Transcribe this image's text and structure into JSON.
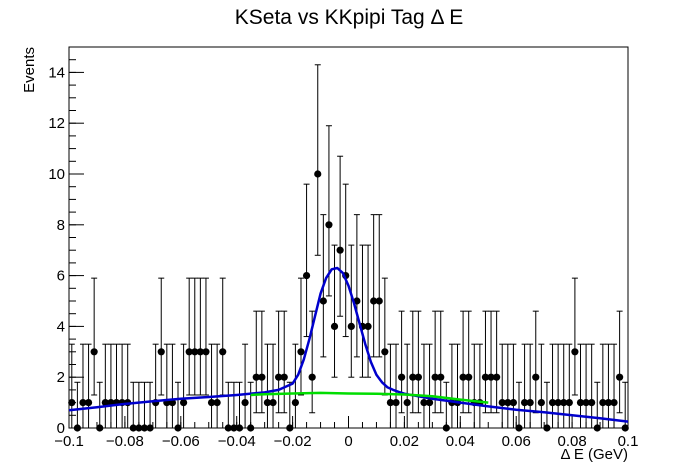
{
  "chart_data": {
    "type": "scatter",
    "title": "KSeta vs KKpipi Tag Δ E",
    "xlabel": "Δ E (GeV)",
    "ylabel": "Events",
    "xlim": [
      -0.1,
      0.1
    ],
    "ylim": [
      0,
      15
    ],
    "x_ticks": [
      -0.1,
      -0.08,
      -0.06,
      -0.04,
      -0.02,
      0,
      0.02,
      0.04,
      0.06,
      0.08,
      0.1
    ],
    "x_tick_labels": [
      "−0.1",
      "−0.08",
      "−0.06",
      "−0.04",
      "−0.02",
      "0",
      "0.02",
      "0.04",
      "0.06",
      "0.08",
      "0.1"
    ],
    "y_ticks": [
      0,
      2,
      4,
      6,
      8,
      10,
      12,
      14
    ],
    "y_tick_labels": [
      "0",
      "2",
      "4",
      "6",
      "8",
      "10",
      "12",
      "14"
    ],
    "grid": false,
    "legend": "none",
    "colors": {
      "data": "#000000",
      "total_fit": "#0000cc",
      "background_fit": "#00dd00"
    },
    "series": [
      {
        "kind": "points_with_errors",
        "x": [
          -0.099,
          -0.097,
          -0.095,
          -0.093,
          -0.091,
          -0.089,
          -0.087,
          -0.085,
          -0.083,
          -0.081,
          -0.079,
          -0.077,
          -0.075,
          -0.073,
          -0.071,
          -0.069,
          -0.067,
          -0.065,
          -0.063,
          -0.061,
          -0.059,
          -0.057,
          -0.055,
          -0.053,
          -0.051,
          -0.049,
          -0.047,
          -0.045,
          -0.043,
          -0.041,
          -0.039,
          -0.037,
          -0.035,
          -0.033,
          -0.031,
          -0.029,
          -0.027,
          -0.025,
          -0.023,
          -0.021,
          -0.019,
          -0.017,
          -0.015,
          -0.013,
          -0.011,
          -0.009,
          -0.007,
          -0.005,
          -0.003,
          -0.001,
          0.001,
          0.003,
          0.005,
          0.007,
          0.009,
          0.011,
          0.013,
          0.015,
          0.017,
          0.019,
          0.021,
          0.023,
          0.025,
          0.027,
          0.029,
          0.031,
          0.033,
          0.035,
          0.037,
          0.039,
          0.041,
          0.043,
          0.045,
          0.047,
          0.049,
          0.051,
          0.053,
          0.055,
          0.057,
          0.059,
          0.061,
          0.063,
          0.065,
          0.067,
          0.069,
          0.071,
          0.073,
          0.075,
          0.077,
          0.079,
          0.081,
          0.083,
          0.085,
          0.087,
          0.089,
          0.091,
          0.093,
          0.095,
          0.097,
          0.099
        ],
        "y": [
          1,
          0,
          1,
          1,
          3,
          0,
          1,
          1,
          1,
          1,
          1,
          0,
          0,
          0,
          0,
          1,
          3,
          1,
          1,
          0,
          1,
          3,
          3,
          3,
          3,
          1,
          1,
          3,
          0,
          0,
          0,
          1,
          0,
          2,
          2,
          1,
          1,
          2,
          2,
          0,
          1,
          3,
          6,
          2,
          10,
          5,
          8,
          4,
          7,
          6,
          4,
          5,
          4,
          4,
          5,
          5,
          3,
          1,
          1,
          2,
          1,
          2,
          2,
          1,
          1,
          2,
          2,
          0,
          1,
          1,
          2,
          2,
          1,
          1,
          2,
          2,
          2,
          1,
          1,
          1,
          0,
          1,
          1,
          2,
          1,
          0,
          1,
          1,
          1,
          1,
          3,
          1,
          1,
          1,
          0,
          1,
          1,
          1,
          2,
          0
        ],
        "err_low": [
          1,
          0,
          1,
          1,
          1.7,
          0,
          1,
          1,
          1,
          1,
          1,
          0,
          0,
          0,
          0,
          1,
          1.7,
          1,
          1,
          0,
          1,
          1.7,
          1.7,
          1.7,
          1.7,
          1,
          1,
          1.7,
          0,
          0,
          0,
          1,
          0,
          1.4,
          1.4,
          1,
          1,
          1.4,
          1.4,
          0,
          1,
          1.7,
          2.4,
          1.4,
          3.2,
          2.2,
          2.8,
          2,
          2.6,
          2.4,
          2,
          2.2,
          2,
          2,
          2.2,
          2.2,
          1.7,
          1,
          1,
          1.4,
          1,
          1.4,
          1.4,
          1,
          1,
          1.4,
          1.4,
          0,
          1,
          1,
          1.4,
          1.4,
          1,
          1,
          1.4,
          1.4,
          1.4,
          1,
          1,
          1,
          0,
          1,
          1,
          1.4,
          1,
          0,
          1,
          1,
          1,
          1,
          1.7,
          1,
          1,
          1,
          0,
          1,
          1,
          1,
          1.4,
          0
        ],
        "err_high": [
          2.3,
          1.8,
          2.3,
          2.3,
          2.9,
          1.8,
          2.3,
          2.3,
          2.3,
          2.3,
          2.3,
          1.8,
          1.8,
          1.8,
          1.8,
          2.3,
          2.9,
          2.3,
          2.3,
          1.8,
          2.3,
          2.9,
          2.9,
          2.9,
          2.9,
          2.3,
          2.3,
          2.9,
          1.8,
          1.8,
          1.8,
          2.3,
          1.8,
          2.6,
          2.6,
          2.3,
          2.3,
          2.6,
          2.6,
          1.8,
          2.3,
          2.9,
          3.6,
          2.6,
          4.3,
          3.4,
          3.9,
          3.2,
          3.7,
          3.6,
          3.2,
          3.4,
          3.2,
          3.2,
          3.4,
          3.4,
          2.9,
          2.3,
          2.3,
          2.6,
          2.3,
          2.6,
          2.6,
          2.3,
          2.3,
          2.6,
          2.6,
          1.8,
          2.3,
          2.3,
          2.6,
          2.6,
          2.3,
          2.3,
          2.6,
          2.6,
          2.6,
          2.3,
          2.3,
          2.3,
          1.8,
          2.3,
          2.3,
          2.6,
          2.3,
          1.8,
          2.3,
          2.3,
          2.3,
          2.3,
          2.9,
          2.3,
          2.3,
          2.3,
          1.8,
          2.3,
          2.3,
          2.3,
          2.6,
          1.8
        ]
      },
      {
        "kind": "line",
        "color_key": "total_fit",
        "x": [
          -0.1,
          -0.09,
          -0.08,
          -0.07,
          -0.06,
          -0.05,
          -0.04,
          -0.03,
          -0.025,
          -0.02,
          -0.018,
          -0.016,
          -0.014,
          -0.012,
          -0.01,
          -0.008,
          -0.006,
          -0.004,
          -0.002,
          0,
          0.002,
          0.004,
          0.006,
          0.008,
          0.01,
          0.012,
          0.014,
          0.016,
          0.018,
          0.02,
          0.025,
          0.03,
          0.04,
          0.05,
          0.06,
          0.07,
          0.08,
          0.09,
          0.1
        ],
        "y": [
          0.7,
          0.82,
          0.95,
          1.05,
          1.15,
          1.22,
          1.3,
          1.4,
          1.5,
          1.75,
          2.1,
          2.7,
          3.5,
          4.4,
          5.3,
          5.9,
          6.25,
          6.3,
          6.1,
          5.6,
          4.9,
          4.1,
          3.3,
          2.6,
          2.1,
          1.8,
          1.6,
          1.5,
          1.42,
          1.35,
          1.25,
          1.15,
          1.0,
          0.85,
          0.72,
          0.62,
          0.5,
          0.38,
          0.25
        ]
      },
      {
        "kind": "line",
        "color_key": "background_fit",
        "x": [
          -0.035,
          -0.03,
          -0.02,
          -0.01,
          0,
          0.01,
          0.02,
          0.03,
          0.04,
          0.05
        ],
        "y": [
          1.3,
          1.33,
          1.36,
          1.38,
          1.36,
          1.35,
          1.32,
          1.25,
          1.12,
          1.0
        ]
      }
    ]
  }
}
